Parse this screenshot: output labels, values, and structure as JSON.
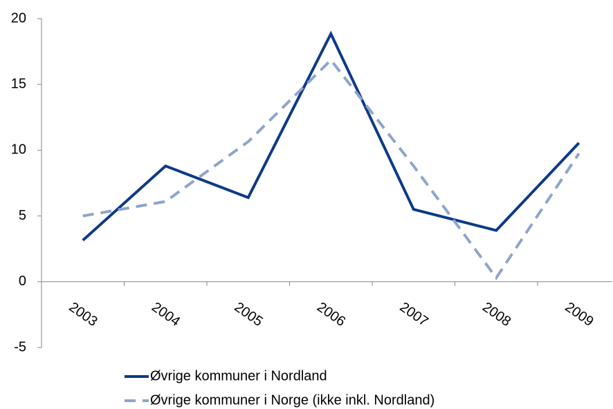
{
  "chart_data": {
    "type": "line",
    "categories": [
      "2003",
      "2004",
      "2005",
      "2006",
      "2007",
      "2008",
      "2009"
    ],
    "series": [
      {
        "name": "Øvrige kommuner i Nordland",
        "color": "#0d3a87",
        "dash": "solid",
        "values": [
          3.15,
          8.8,
          6.4,
          18.85,
          5.5,
          3.9,
          10.55
        ]
      },
      {
        "name": "Øvrige kommuner i Norge (ikke inkl. Nordland)",
        "color": "#8ea5cb",
        "dash": "dashed",
        "values": [
          5.0,
          6.1,
          10.65,
          16.85,
          8.8,
          0.3,
          9.75
        ]
      }
    ],
    "ylim": [
      -5,
      20
    ],
    "yticks": [
      -5,
      0,
      5,
      10,
      15,
      20
    ],
    "grid": false,
    "legend": "bottom"
  }
}
